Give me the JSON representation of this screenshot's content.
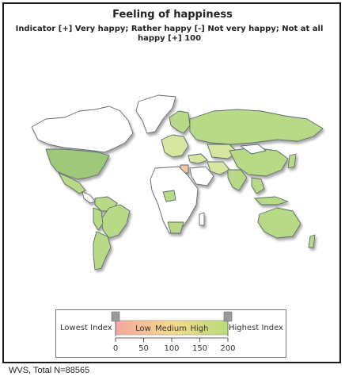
{
  "title": "Feeling of happiness",
  "subtitle": "Indicator [+] Very happy; Rather happy [-] Not very happy; Not at all happy [+] 100",
  "legend": {
    "lowest_label": "Lowest Index",
    "highest_label": "Highest Index",
    "bar_labels": [
      "Low",
      "Medium",
      "High"
    ],
    "ticks": [
      "0",
      "50",
      "100",
      "150",
      "200"
    ],
    "gradient": [
      "#f4a6a0",
      "#f7d98c",
      "#b9dc7a"
    ]
  },
  "footer": "WVS, Total N=88565",
  "colors": {
    "no_data": "#ffffff",
    "high": "#b8d986",
    "mid_high": "#9fc87a",
    "medium": "#d7e6a0",
    "low": "#f3c7a3",
    "border": "#5f6b6b",
    "shadow": "#c9d0d0"
  }
}
